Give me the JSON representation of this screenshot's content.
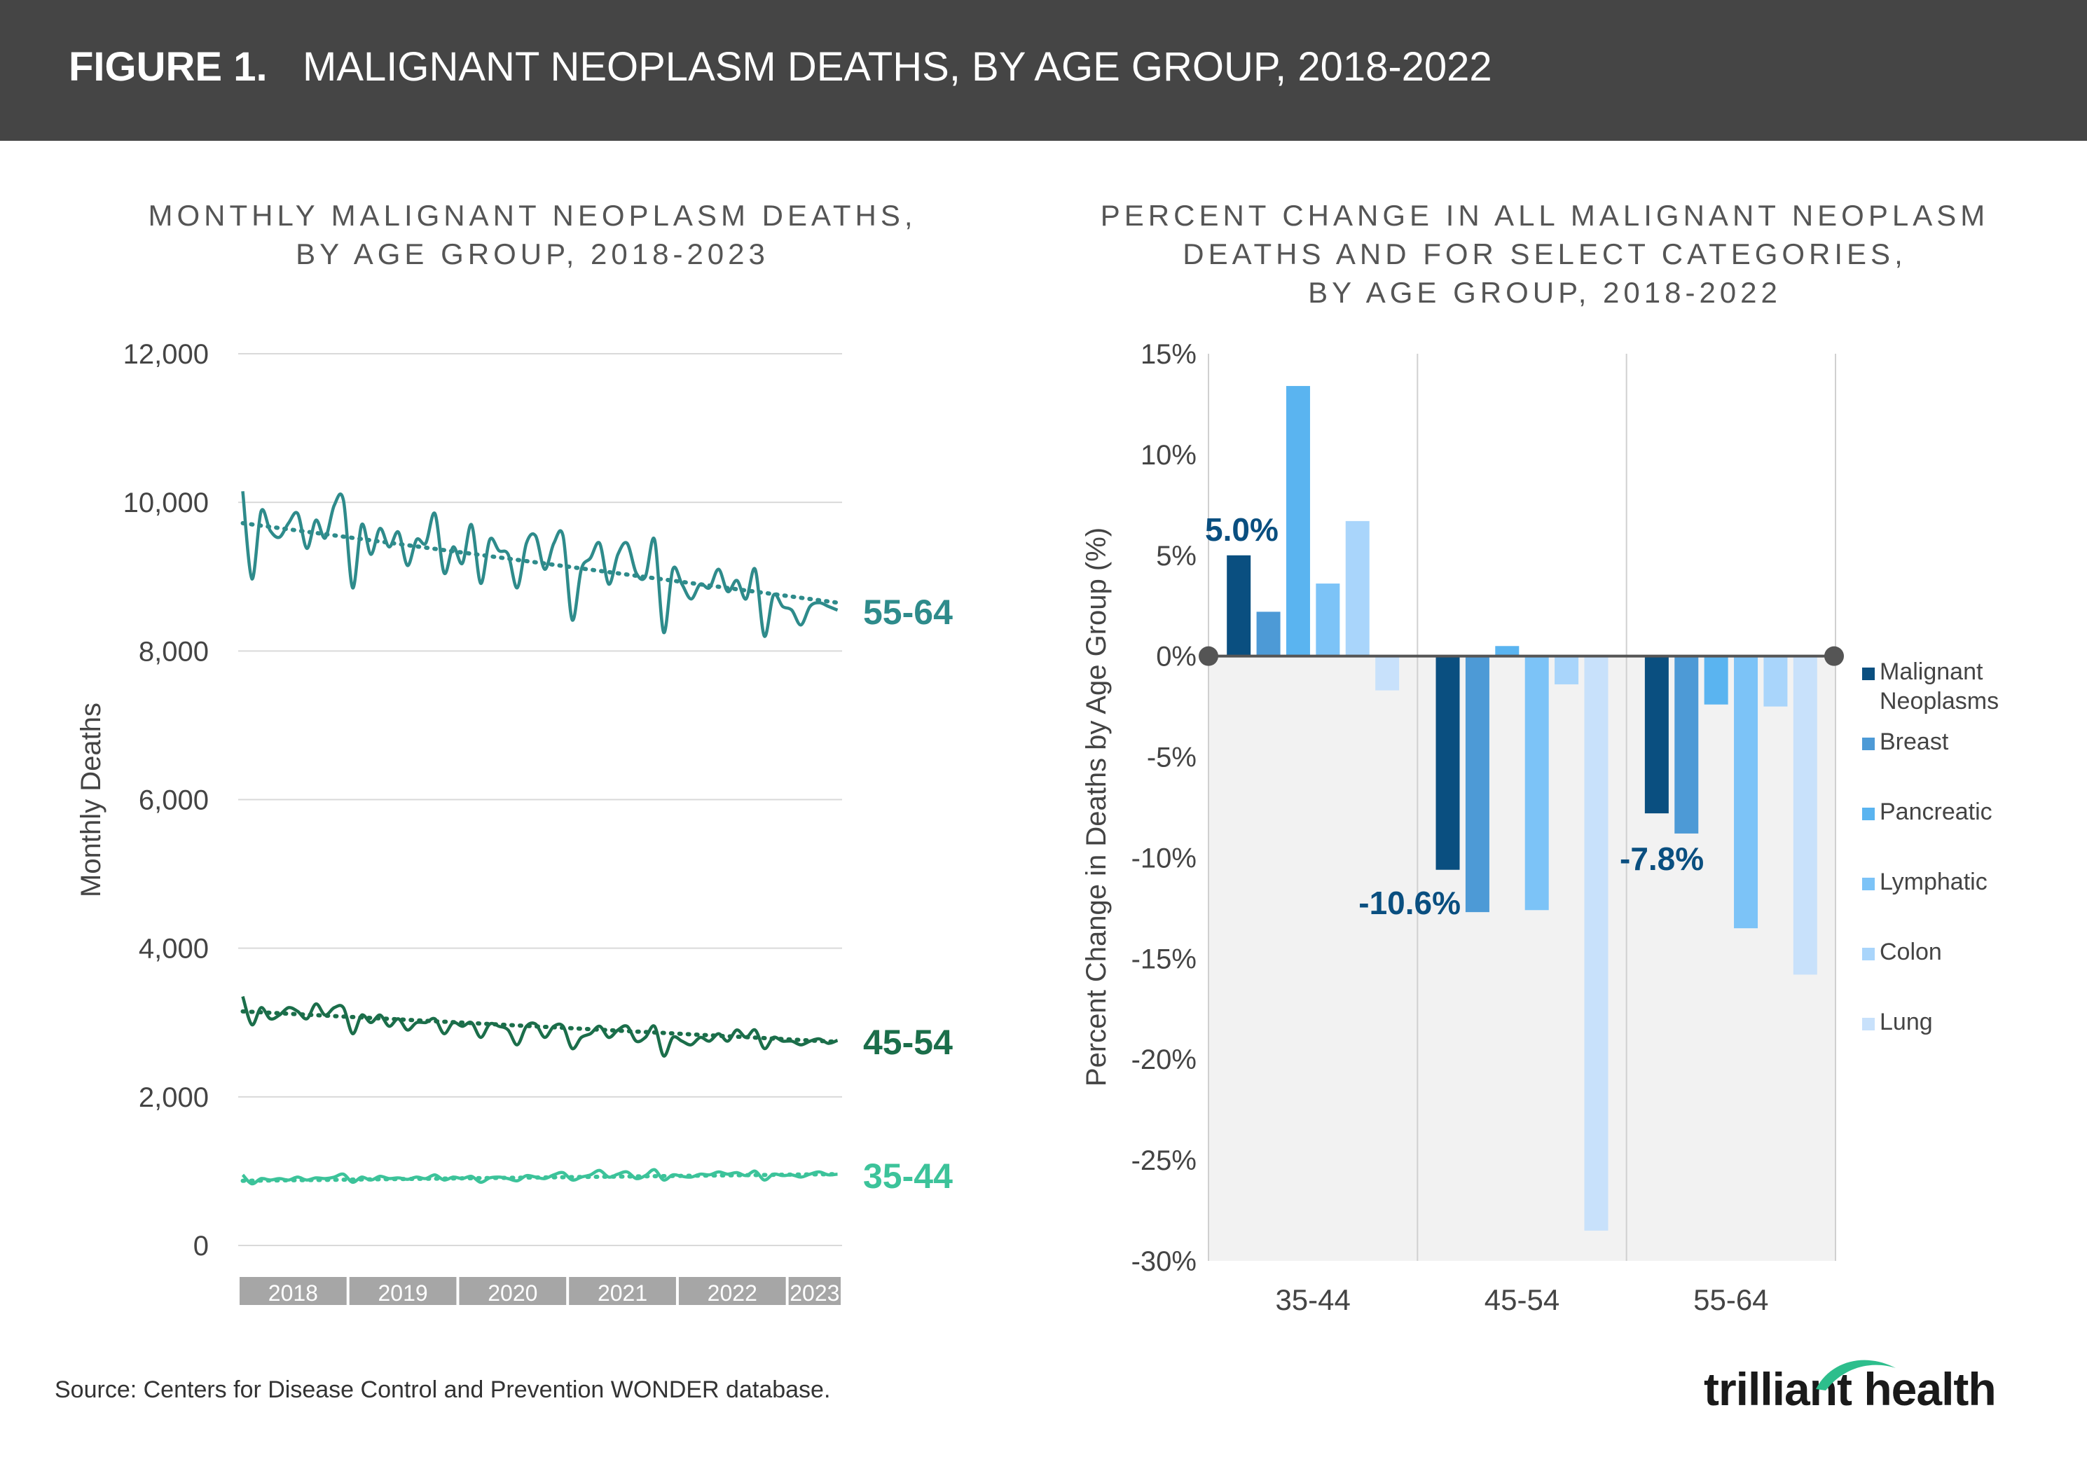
{
  "header": {
    "figure_label": "FIGURE 1.",
    "title": "MALIGNANT NEOPLASM DEATHS, BY AGE GROUP, 2018-2022"
  },
  "colors": {
    "s55": "#2E8B8B",
    "s45": "#1B6E4A",
    "s35": "#3CC39A",
    "bars": [
      "#0A4F80",
      "#4D9AD6",
      "#5AB4F0",
      "#7CC3F7",
      "#A9D5FB",
      "#C8E1FB"
    ],
    "label_blue": "#0A4F80",
    "zero_line": "#555555",
    "neg_bg": "#F2F2F2"
  },
  "chart_data": [
    {
      "type": "line",
      "title_lines": [
        "MONTHLY MALIGNANT NEOPLASM DEATHS,",
        "BY AGE GROUP, 2018-2023"
      ],
      "xlabel": "",
      "ylabel": "Monthly Deaths",
      "ylim": [
        0,
        12000
      ],
      "yticks": [
        0,
        2000,
        4000,
        6000,
        8000,
        10000,
        12000
      ],
      "ytick_labels": [
        "0",
        "2,000",
        "4,000",
        "6,000",
        "8,000",
        "10,000",
        "12,000"
      ],
      "year_labels": [
        "2018",
        "2019",
        "2020",
        "2021",
        "2022",
        "2023"
      ],
      "months_per_year": [
        12,
        12,
        12,
        12,
        12,
        6
      ],
      "grid": true,
      "series": [
        {
          "name": "55-64",
          "trend": [
            9720,
            8650
          ],
          "values": [
            10150,
            8970,
            9880,
            9620,
            9530,
            9720,
            9850,
            9380,
            9760,
            9520,
            9960,
            10030,
            8850,
            9700,
            9300,
            9650,
            9400,
            9600,
            9150,
            9500,
            9450,
            9850,
            9050,
            9400,
            9180,
            9700,
            8910,
            9500,
            9350,
            9300,
            8850,
            9450,
            9550,
            9100,
            9450,
            9550,
            8420,
            9100,
            9250,
            9450,
            8900,
            9300,
            9450,
            9050,
            9000,
            9500,
            8250,
            9100,
            8900,
            8700,
            8900,
            8850,
            9100,
            8800,
            8950,
            8700,
            9100,
            8200,
            8750,
            8600,
            8550,
            8350,
            8600,
            8650,
            8600,
            8550
          ]
        },
        {
          "name": "45-54",
          "trend": [
            3150,
            2740
          ],
          "values": [
            3350,
            2970,
            3200,
            3050,
            3100,
            3200,
            3150,
            3050,
            3250,
            3100,
            3200,
            3200,
            2850,
            3100,
            3000,
            3100,
            2950,
            3050,
            2900,
            3000,
            3000,
            3050,
            2850,
            3000,
            2950,
            3000,
            2800,
            2980,
            2950,
            2900,
            2700,
            2950,
            2980,
            2800,
            2950,
            2950,
            2650,
            2800,
            2850,
            2950,
            2800,
            2900,
            2950,
            2750,
            2800,
            2950,
            2550,
            2800,
            2750,
            2700,
            2800,
            2750,
            2850,
            2750,
            2900,
            2800,
            2900,
            2650,
            2800,
            2750,
            2750,
            2700,
            2750,
            2780,
            2720,
            2760
          ]
        },
        {
          "name": "35-44",
          "trend": [
            870,
            960
          ],
          "values": [
            950,
            830,
            900,
            880,
            900,
            880,
            920,
            880,
            910,
            900,
            920,
            960,
            850,
            920,
            880,
            930,
            900,
            910,
            890,
            920,
            900,
            950,
            880,
            920,
            900,
            930,
            850,
            910,
            920,
            900,
            870,
            940,
            920,
            900,
            950,
            980,
            880,
            920,
            950,
            1010,
            920,
            960,
            990,
            900,
            940,
            1020,
            880,
            950,
            930,
            920,
            960,
            950,
            990,
            960,
            980,
            940,
            1000,
            880,
            960,
            940,
            950,
            920,
            960,
            990,
            950,
            960
          ]
        }
      ]
    },
    {
      "type": "bar",
      "title_lines": [
        "PERCENT CHANGE IN ALL MALIGNANT NEOPLASM",
        "DEATHS AND FOR SELECT CATEGORIES,",
        "BY AGE GROUP, 2018-2022"
      ],
      "xlabel": "",
      "ylabel": "Percent Change in Deaths by Age Group (%)",
      "ylim": [
        -30,
        15
      ],
      "yticks": [
        15,
        10,
        5,
        0,
        -5,
        -10,
        -15,
        -20,
        -25,
        -30
      ],
      "ytick_labels": [
        "15%",
        "10%",
        "5%",
        "0%",
        "-5%",
        "-10%",
        "-15%",
        "-20%",
        "-25%",
        "-30%"
      ],
      "categories": [
        "35-44",
        "45-54",
        "55-64"
      ],
      "legend_position": "right",
      "series": [
        {
          "name": "Malignant Neoplasms",
          "values": [
            5.0,
            -10.6,
            -7.8
          ]
        },
        {
          "name": "Breast",
          "values": [
            2.2,
            -12.7,
            -8.8
          ]
        },
        {
          "name": "Pancreatic",
          "values": [
            13.4,
            0.5,
            -2.4
          ]
        },
        {
          "name": "Lymphatic",
          "values": [
            3.6,
            -12.6,
            -13.5
          ]
        },
        {
          "name": "Colon",
          "values": [
            6.7,
            -1.4,
            -2.5
          ]
        },
        {
          "name": "Lung",
          "values": [
            -1.7,
            -28.5,
            -15.8
          ]
        }
      ],
      "data_labels": [
        "5.0%",
        "-10.6%",
        "-7.8%"
      ]
    }
  ],
  "footer": {
    "source": "Source: Centers for Disease Control and Prevention WONDER database.",
    "logo_text": "trilliant health"
  }
}
